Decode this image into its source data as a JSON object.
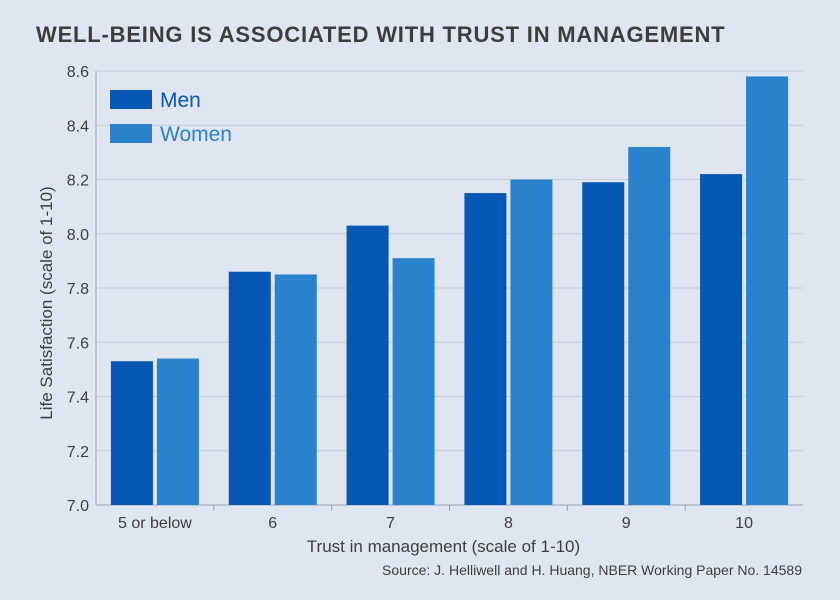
{
  "title": "WELL-BEING IS ASSOCIATED WITH TRUST IN MANAGEMENT",
  "source": "Source: J. Helliwell and H. Huang,  NBER Working Paper No. 14589",
  "colors": {
    "men": "#0757b5",
    "women": "#2b82cc",
    "grid": "#c3ccd9",
    "text": "#3d3d3d"
  },
  "chart_data": {
    "type": "bar",
    "categories": [
      "5 or below",
      "6",
      "7",
      "8",
      "9",
      "10"
    ],
    "series": [
      {
        "name": "Men",
        "values": [
          7.53,
          7.86,
          8.03,
          8.15,
          8.19,
          8.22
        ]
      },
      {
        "name": "Women",
        "values": [
          7.54,
          7.85,
          7.91,
          8.2,
          8.32,
          8.58
        ]
      }
    ],
    "xlabel": "Trust in management (scale of 1-10)",
    "ylabel": "Life Satisfaction (scale of 1-10)",
    "ylim": [
      7.0,
      8.6
    ],
    "yticks": [
      "7.0",
      "7.2",
      "7.4",
      "7.6",
      "7.8",
      "8.0",
      "8.2",
      "8.4",
      "8.6"
    ],
    "grid": true,
    "legend_position": "top-left"
  }
}
